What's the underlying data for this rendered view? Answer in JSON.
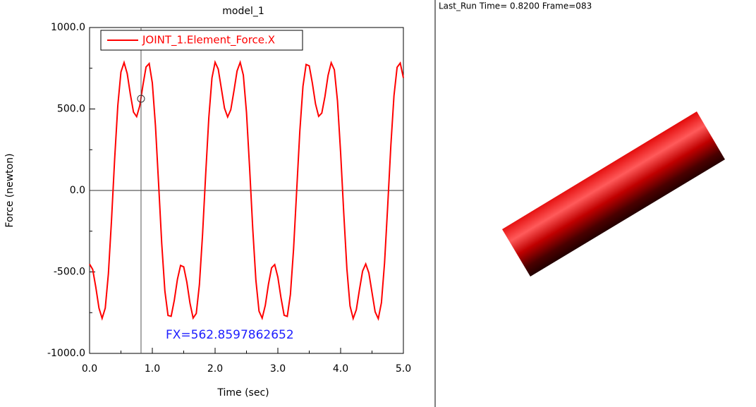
{
  "chart_data": {
    "type": "line",
    "title": "model_1",
    "x_label": "Time (sec)",
    "y_label": "Force (newton)",
    "x": [
      0,
      0.05,
      0.1,
      0.15,
      0.2,
      0.25,
      0.3,
      0.35,
      0.4,
      0.45,
      0.5,
      0.55,
      0.6,
      0.65,
      0.7,
      0.75,
      0.8,
      0.85,
      0.9,
      0.95,
      1,
      1.05,
      1.1,
      1.15,
      1.2,
      1.25,
      1.3,
      1.35,
      1.4,
      1.45,
      1.5,
      1.55,
      1.6,
      1.65,
      1.7,
      1.75,
      1.8,
      1.85,
      1.9,
      1.95,
      2,
      2.05,
      2.1,
      2.15,
      2.2,
      2.25,
      2.3,
      2.35,
      2.4,
      2.45,
      2.5,
      2.55,
      2.6,
      2.65,
      2.7,
      2.75,
      2.8,
      2.85,
      2.9,
      2.95,
      3,
      3.05,
      3.1,
      3.15,
      3.2,
      3.25,
      3.3,
      3.35,
      3.4,
      3.45,
      3.5,
      3.55,
      3.6,
      3.65,
      3.7,
      3.75,
      3.8,
      3.85,
      3.9,
      3.95,
      4,
      4.05,
      4.1,
      4.15,
      4.2,
      4.25,
      4.3,
      4.35,
      4.4,
      4.45,
      4.5,
      4.55,
      4.6,
      4.65,
      4.7,
      4.75,
      4.8,
      4.85,
      4.9,
      4.95,
      5
    ],
    "series": [
      {
        "name": "JOINT_1.Element_Force.X",
        "color": "#ff0000",
        "values": [
          -452,
          -485,
          -595,
          -722,
          -785,
          -722,
          -511,
          -180,
          195,
          521,
          727,
          785,
          717,
          590,
          481,
          453,
          520,
          645,
          758,
          779,
          660,
          397,
          41,
          -327,
          -617,
          -767,
          -772,
          -674,
          -545,
          -460,
          -469,
          -563,
          -692,
          -783,
          -755,
          -578,
          -272,
          99,
          446,
          690,
          787,
          745,
          625,
          505,
          451,
          495,
          610,
          733,
          786,
          708,
          480,
          138,
          -235,
          -551,
          -741,
          -784,
          -705,
          -576,
          -475,
          -455,
          -532,
          -659,
          -766,
          -773,
          -638,
          -362,
          0,
          364,
          639,
          773,
          765,
          658,
          531,
          455,
          475,
          576,
          706,
          784,
          741,
          549,
          232,
          -140,
          -482,
          -709,
          -786,
          -732,
          -609,
          -495,
          -451,
          -506,
          -626,
          -745,
          -787,
          -689,
          -444,
          -96,
          274,
          581,
          756,
          782,
          691
        ]
      }
    ],
    "xlim": [
      0,
      5
    ],
    "ylim": [
      -1000,
      1000
    ],
    "xticks": [
      {
        "value": 0,
        "label": "0.0"
      },
      {
        "value": 1,
        "label": "1.0"
      },
      {
        "value": 2,
        "label": "2.0"
      },
      {
        "value": 3,
        "label": "3.0"
      },
      {
        "value": 4,
        "label": "4.0"
      },
      {
        "value": 5,
        "label": "5.0"
      }
    ],
    "yticks": [
      {
        "value": -1000,
        "label": "-1000.0"
      },
      {
        "value": -500,
        "label": "-500.0"
      },
      {
        "value": 0,
        "label": "0.0"
      },
      {
        "value": 500,
        "label": "500.0"
      },
      {
        "value": 1000,
        "label": "1000.0"
      }
    ],
    "xminor_ticks": [
      0.5,
      1.5,
      2.5,
      3.5,
      4.5
    ],
    "yminor_ticks": [
      -750,
      -250,
      250,
      750
    ],
    "cursor": {
      "x": 0.82,
      "value": 562.8597862652,
      "label": "FX=562.8597862652",
      "color": "#2020ff"
    },
    "legend": "upper left"
  },
  "animation": {
    "header": "Last_Run   Time= 0.8200 Frame=083"
  }
}
